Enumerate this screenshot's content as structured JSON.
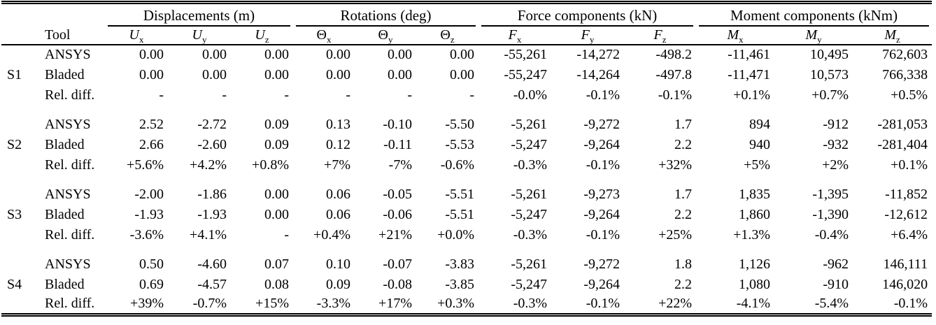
{
  "table": {
    "tool_header": "Tool",
    "groups": [
      {
        "label": "Displacements (m)"
      },
      {
        "label": "Rotations (deg)"
      },
      {
        "label": "Force components (kN)"
      },
      {
        "label": "Moment components (kNm)"
      }
    ],
    "columns": [
      {
        "name": "ux",
        "base": "U",
        "sub": "x",
        "italic": true
      },
      {
        "name": "uy",
        "base": "U",
        "sub": "y",
        "italic": true
      },
      {
        "name": "uz",
        "base": "U",
        "sub": "z",
        "italic": true
      },
      {
        "name": "theta-x",
        "base": "Θ",
        "sub": "x",
        "italic": false
      },
      {
        "name": "theta-y",
        "base": "Θ",
        "sub": "y",
        "italic": false
      },
      {
        "name": "theta-z",
        "base": "Θ",
        "sub": "z",
        "italic": false
      },
      {
        "name": "fx",
        "base": "F",
        "sub": "x",
        "italic": true
      },
      {
        "name": "fy",
        "base": "F",
        "sub": "y",
        "italic": true
      },
      {
        "name": "fz",
        "base": "F",
        "sub": "z",
        "italic": true
      },
      {
        "name": "mx",
        "base": "M",
        "sub": "x",
        "italic": true
      },
      {
        "name": "my",
        "base": "M",
        "sub": "y",
        "italic": true
      },
      {
        "name": "mz",
        "base": "M",
        "sub": "z",
        "italic": true
      }
    ],
    "sections": [
      {
        "id": "S1",
        "rows": [
          {
            "tool": "ANSYS",
            "values": [
              "0.00",
              "0.00",
              "0.00",
              "0.00",
              "0.00",
              "0.00",
              "-55,261",
              "-14,272",
              "-498.2",
              "-11,461",
              "10,495",
              "762,603"
            ]
          },
          {
            "tool": "Bladed",
            "values": [
              "0.00",
              "0.00",
              "0.00",
              "0.00",
              "0.00",
              "0.00",
              "-55,247",
              "-14,264",
              "-497.8",
              "-11,471",
              "10,573",
              "766,338"
            ]
          },
          {
            "tool": "Rel. diff.",
            "values": [
              "-",
              "-",
              "-",
              "-",
              "-",
              "-",
              "-0.0%",
              "-0.1%",
              "-0.1%",
              "+0.1%",
              "+0.7%",
              "+0.5%"
            ]
          }
        ]
      },
      {
        "id": "S2",
        "rows": [
          {
            "tool": "ANSYS",
            "values": [
              "2.52",
              "-2.72",
              "0.09",
              "0.13",
              "-0.10",
              "-5.50",
              "-5,261",
              "-9,272",
              "1.7",
              "894",
              "-912",
              "-281,053"
            ]
          },
          {
            "tool": "Bladed",
            "values": [
              "2.66",
              "-2.60",
              "0.09",
              "0.12",
              "-0.11",
              "-5.53",
              "-5,247",
              "-9,264",
              "2.2",
              "940",
              "-932",
              "-281,404"
            ]
          },
          {
            "tool": "Rel. diff.",
            "values": [
              "+5.6%",
              "+4.2%",
              "+0.8%",
              "+7%",
              "-7%",
              "-0.6%",
              "-0.3%",
              "-0.1%",
              "+32%",
              "+5%",
              "+2%",
              "+0.1%"
            ]
          }
        ]
      },
      {
        "id": "S3",
        "rows": [
          {
            "tool": "ANSYS",
            "values": [
              "-2.00",
              "-1.86",
              "0.00",
              "0.06",
              "-0.05",
              "-5.51",
              "-5,261",
              "-9,273",
              "1.7",
              "1,835",
              "-1,395",
              "-11,852"
            ]
          },
          {
            "tool": "Bladed",
            "values": [
              "-1.93",
              "-1.93",
              "0.00",
              "0.06",
              "-0.06",
              "-5.51",
              "-5,247",
              "-9,264",
              "2.2",
              "1,860",
              "-1,390",
              "-12,612"
            ]
          },
          {
            "tool": "Rel. diff.",
            "values": [
              "-3.6%",
              "+4.1%",
              "-",
              "+0.4%",
              "+21%",
              "+0.0%",
              "-0.3%",
              "-0.1%",
              "+25%",
              "+1.3%",
              "-0.4%",
              "+6.4%"
            ]
          }
        ]
      },
      {
        "id": "S4",
        "rows": [
          {
            "tool": "ANSYS",
            "values": [
              "0.50",
              "-4.60",
              "0.07",
              "0.10",
              "-0.07",
              "-3.83",
              "-5,261",
              "-9,272",
              "1.8",
              "1,126",
              "-962",
              "146,111"
            ]
          },
          {
            "tool": "Bladed",
            "values": [
              "0.69",
              "-4.57",
              "0.08",
              "0.09",
              "-0.08",
              "-3.85",
              "-5,247",
              "-9,264",
              "2.2",
              "1,080",
              "-910",
              "146,020"
            ]
          },
          {
            "tool": "Rel. diff.",
            "values": [
              "+39%",
              "-0.7%",
              "+15%",
              "-3.3%",
              "+17%",
              "+0.3%",
              "-0.3%",
              "-0.1%",
              "+22%",
              "-4.1%",
              "-5.4%",
              "-0.1%"
            ]
          }
        ]
      }
    ]
  }
}
